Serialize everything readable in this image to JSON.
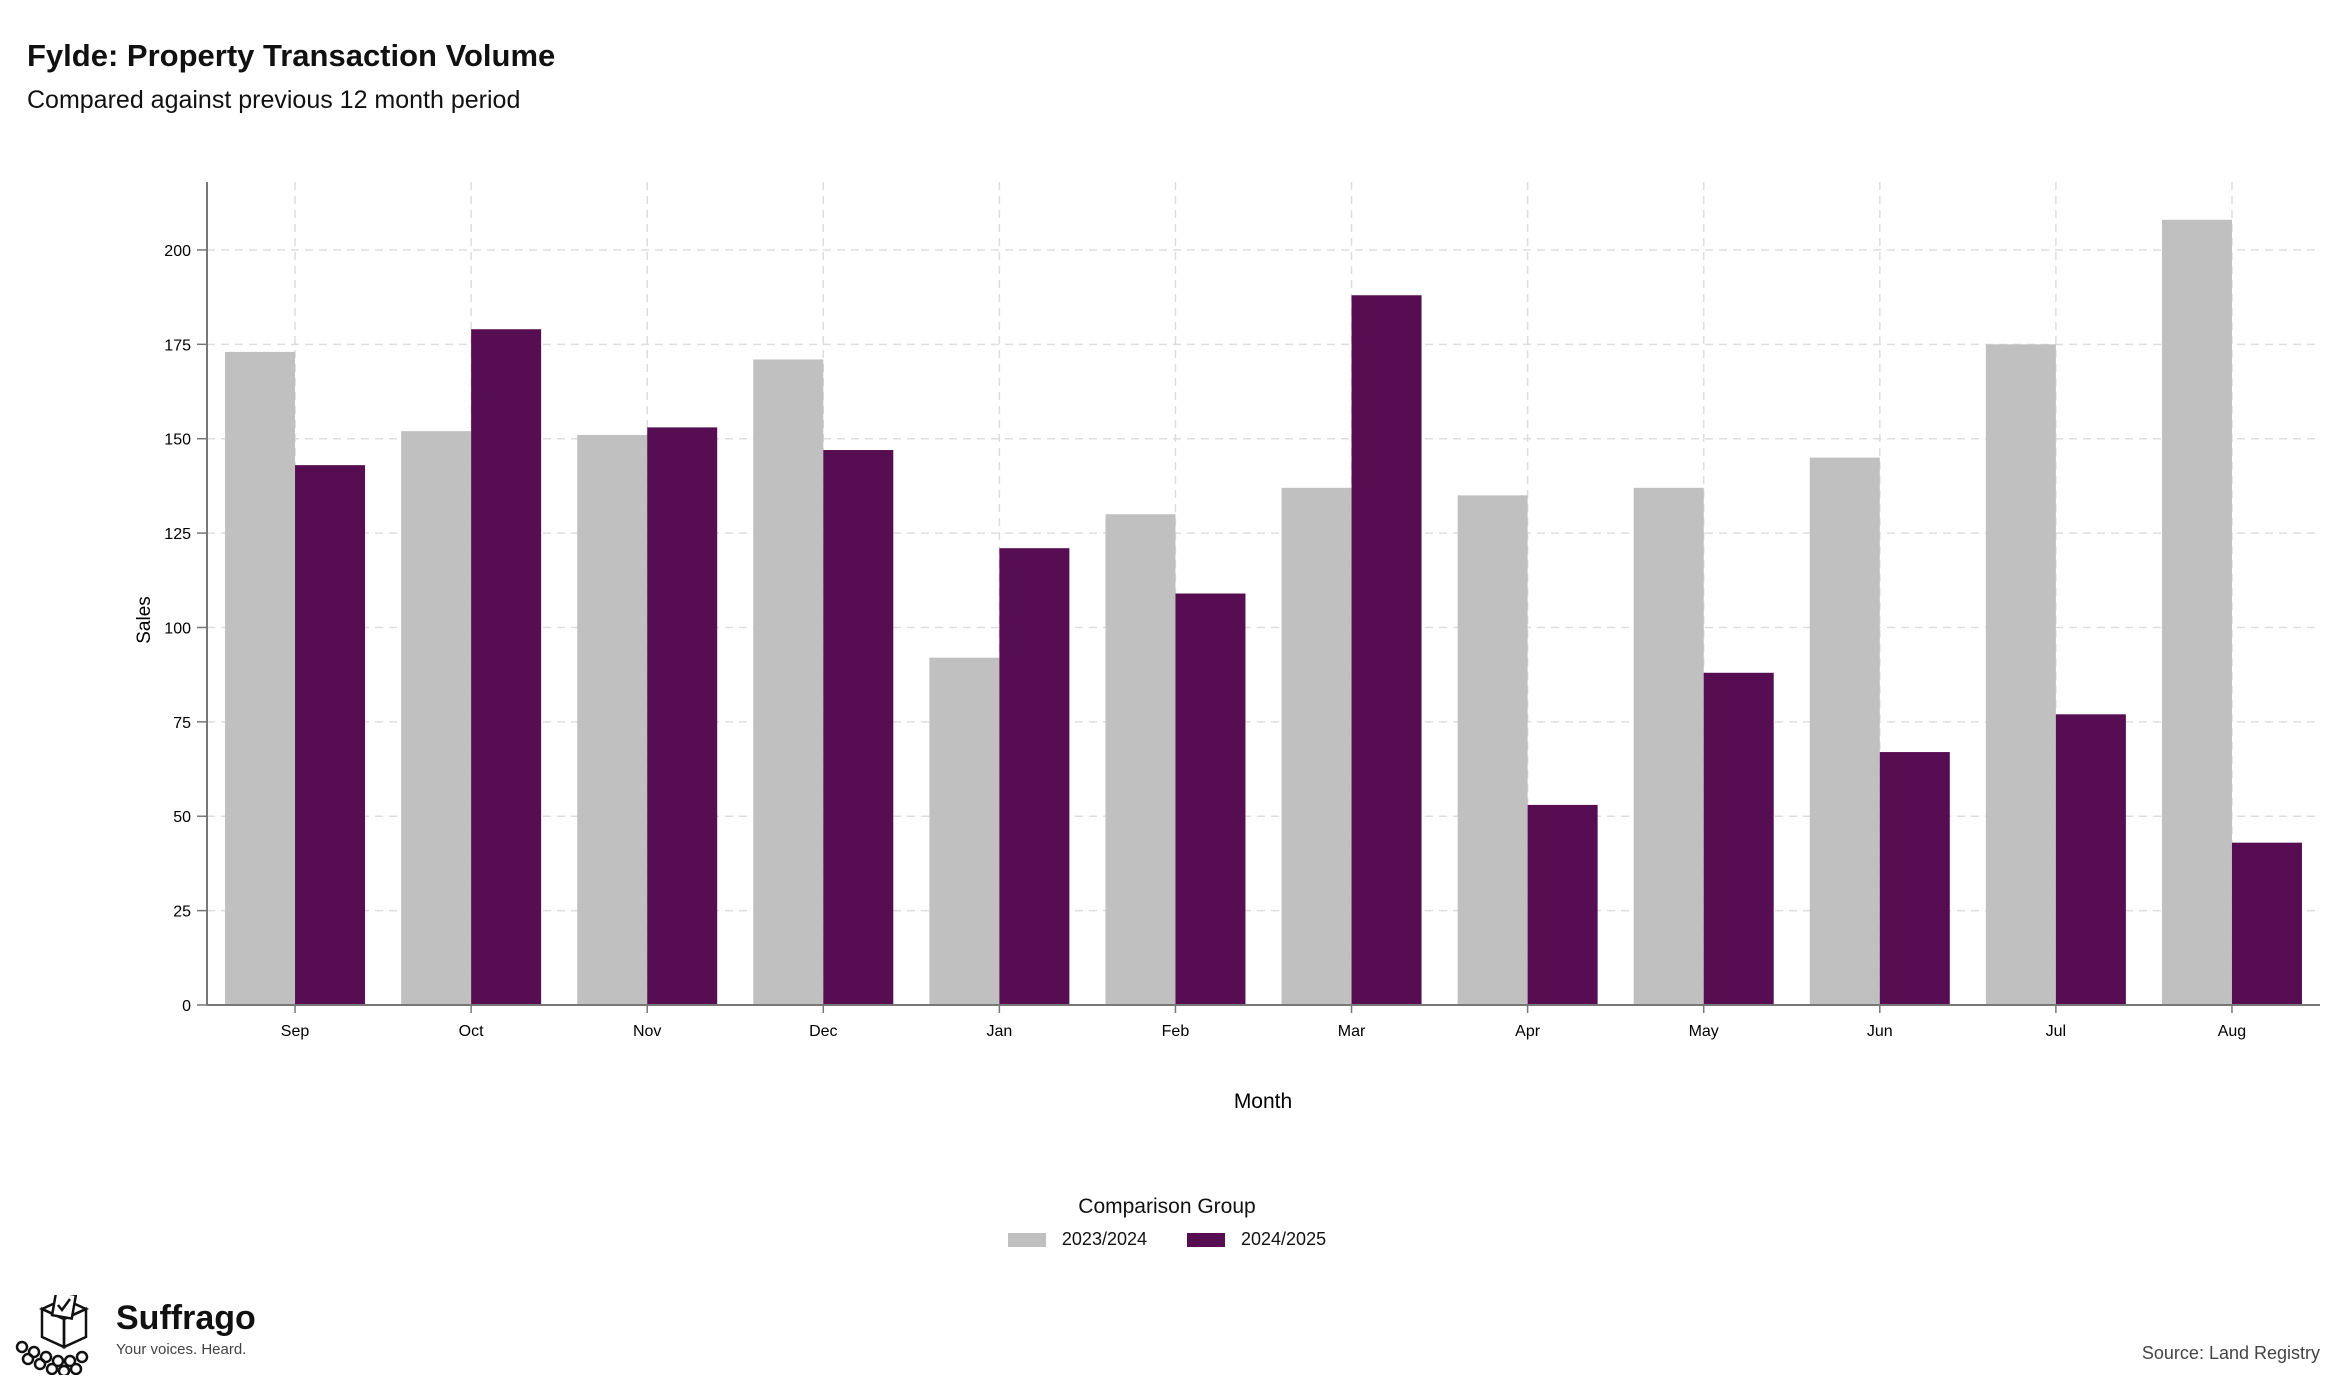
{
  "header": {
    "title": "Fylde: Property Transaction Volume",
    "subtitle": "Compared against previous 12 month period"
  },
  "chart_data": {
    "type": "bar",
    "title": "Fylde: Property Transaction Volume",
    "subtitle": "Compared against previous 12 month period",
    "xlabel": "Month",
    "ylabel": "Sales",
    "categories": [
      "Sep",
      "Oct",
      "Nov",
      "Dec",
      "Jan",
      "Feb",
      "Mar",
      "Apr",
      "May",
      "Jun",
      "Jul",
      "Aug"
    ],
    "series": [
      {
        "name": "2023/2024",
        "color": "#c0c0c0",
        "values": [
          173,
          152,
          151,
          171,
          92,
          130,
          137,
          135,
          137,
          145,
          175,
          208
        ]
      },
      {
        "name": "2024/2025",
        "color": "#560d51",
        "values": [
          143,
          179,
          153,
          147,
          121,
          109,
          188,
          53,
          88,
          67,
          77,
          43
        ]
      }
    ],
    "ylim": [
      0,
      218
    ],
    "yticks": [
      0,
      25,
      50,
      75,
      100,
      125,
      150,
      175,
      200
    ],
    "grid": true,
    "legend_title": "Comparison Group",
    "legend_position": "bottom"
  },
  "legend": {
    "title": "Comparison Group",
    "items": [
      {
        "label": "2023/2024",
        "color": "#c0c0c0"
      },
      {
        "label": "2024/2025",
        "color": "#560d51"
      }
    ]
  },
  "brand": {
    "name": "Suffrago",
    "tagline": "Your voices. Heard.",
    "logo_icon": "ballot-box-icon"
  },
  "footer": {
    "source": "Source: Land Registry"
  }
}
